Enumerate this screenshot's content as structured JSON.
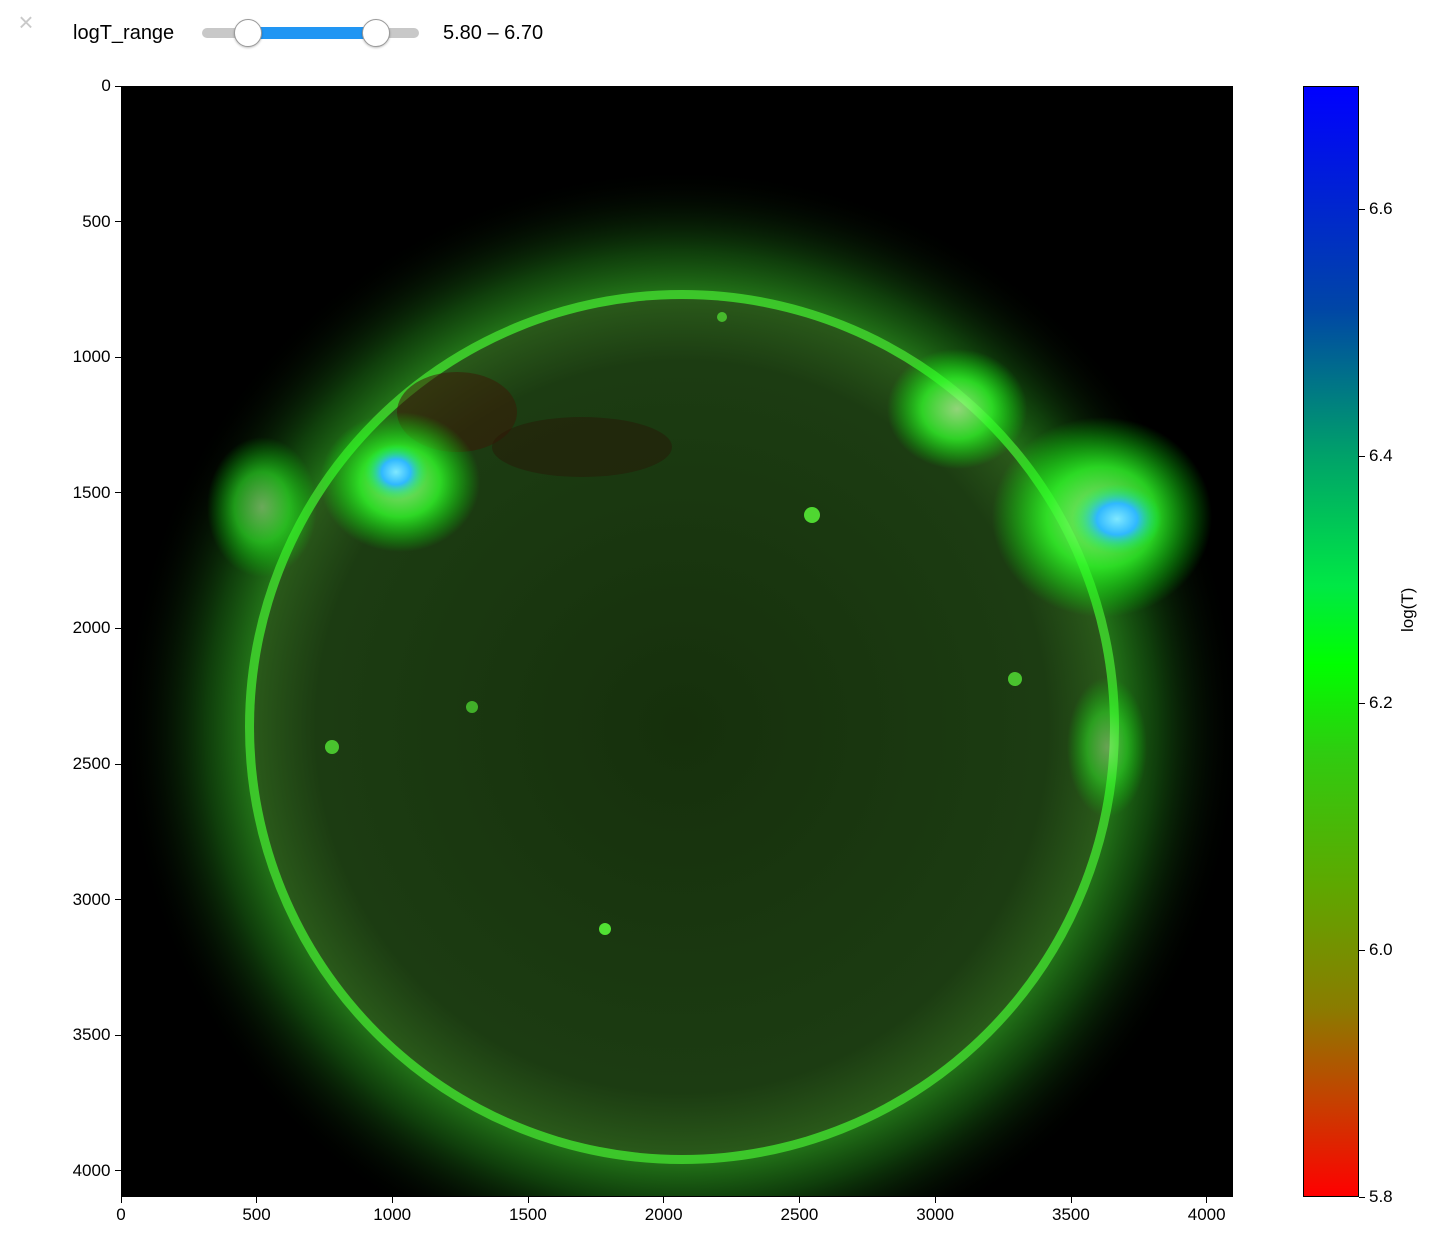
{
  "close_glyph": "×",
  "widget": {
    "label": "logT_range",
    "readout": "5.80 – 6.70",
    "slider": {
      "min": 5.5,
      "max": 7.0,
      "low": 5.8,
      "high": 6.7,
      "accent": "#2196f3"
    }
  },
  "plot": {
    "x_ticks": [
      "0",
      "500",
      "1000",
      "1500",
      "2000",
      "2500",
      "3000",
      "3500",
      "4000"
    ],
    "y_ticks": [
      "0",
      "500",
      "1000",
      "1500",
      "2000",
      "2500",
      "3000",
      "3500",
      "4000"
    ]
  },
  "colorbar": {
    "label": "log(T)",
    "ticks": [
      "5.8",
      "6.0",
      "6.2",
      "6.4",
      "6.6"
    ],
    "colors": [
      "#ff0000",
      "#00ff00",
      "#0000ff"
    ]
  },
  "chart_data": {
    "type": "heatmap",
    "title": "",
    "xlabel": "",
    "ylabel": "",
    "xlim": [
      0,
      4096
    ],
    "ylim": [
      4096,
      0
    ],
    "x_ticks": [
      0,
      500,
      1000,
      1500,
      2000,
      2500,
      3000,
      3500,
      4000
    ],
    "y_ticks": [
      0,
      500,
      1000,
      1500,
      2000,
      2500,
      3000,
      3500,
      4000
    ],
    "colorbar": {
      "label": "log(T)",
      "range": [
        5.8,
        6.7
      ],
      "ticks": [
        5.8,
        6.0,
        6.2,
        6.4,
        6.6
      ]
    }
  }
}
